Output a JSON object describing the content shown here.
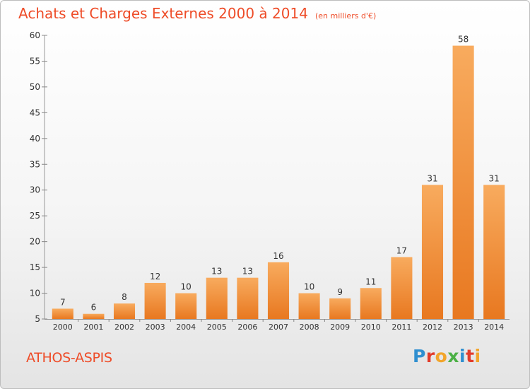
{
  "header": {
    "title": "Achats et Charges Externes 2000 à 2014",
    "subtitle": "(en milliers d'€)"
  },
  "footer": {
    "commune": "ATHOS-ASPIS",
    "logo_letters": [
      "P",
      "r",
      "o",
      "x",
      "i",
      "t",
      "i"
    ],
    "logo_colors": [
      "#2f8fd0",
      "#e23b2a",
      "#f2a52b",
      "#4bb045",
      "#2f8fd0",
      "#e23b2a",
      "#f2a52b"
    ]
  },
  "colors": {
    "bar_light": "#f7a95a",
    "bar_dark": "#ea7a22",
    "text": "#333333",
    "title": "#ee4c28"
  },
  "chart_data": {
    "type": "bar",
    "title": "Achats et Charges Externes 2000 à 2014",
    "subtitle": "(en milliers d'€)",
    "xlabel": "",
    "ylabel": "",
    "categories": [
      "2000",
      "2001",
      "2002",
      "2003",
      "2004",
      "2005",
      "2006",
      "2007",
      "2008",
      "2009",
      "2010",
      "2011",
      "2012",
      "2013",
      "2014"
    ],
    "values": [
      7,
      6,
      8,
      12,
      10,
      13,
      13,
      16,
      10,
      9,
      11,
      17,
      31,
      58,
      31
    ],
    "value_labels": [
      "7",
      "6",
      "8",
      "12",
      "10",
      "13",
      "13",
      "16",
      "10",
      "9",
      "11",
      "17",
      "31",
      "58",
      "31"
    ],
    "ylim": [
      5,
      60
    ],
    "yticks": [
      5,
      10,
      15,
      20,
      25,
      30,
      35,
      40,
      45,
      50,
      55,
      60
    ],
    "grid": false,
    "legend": "none"
  }
}
